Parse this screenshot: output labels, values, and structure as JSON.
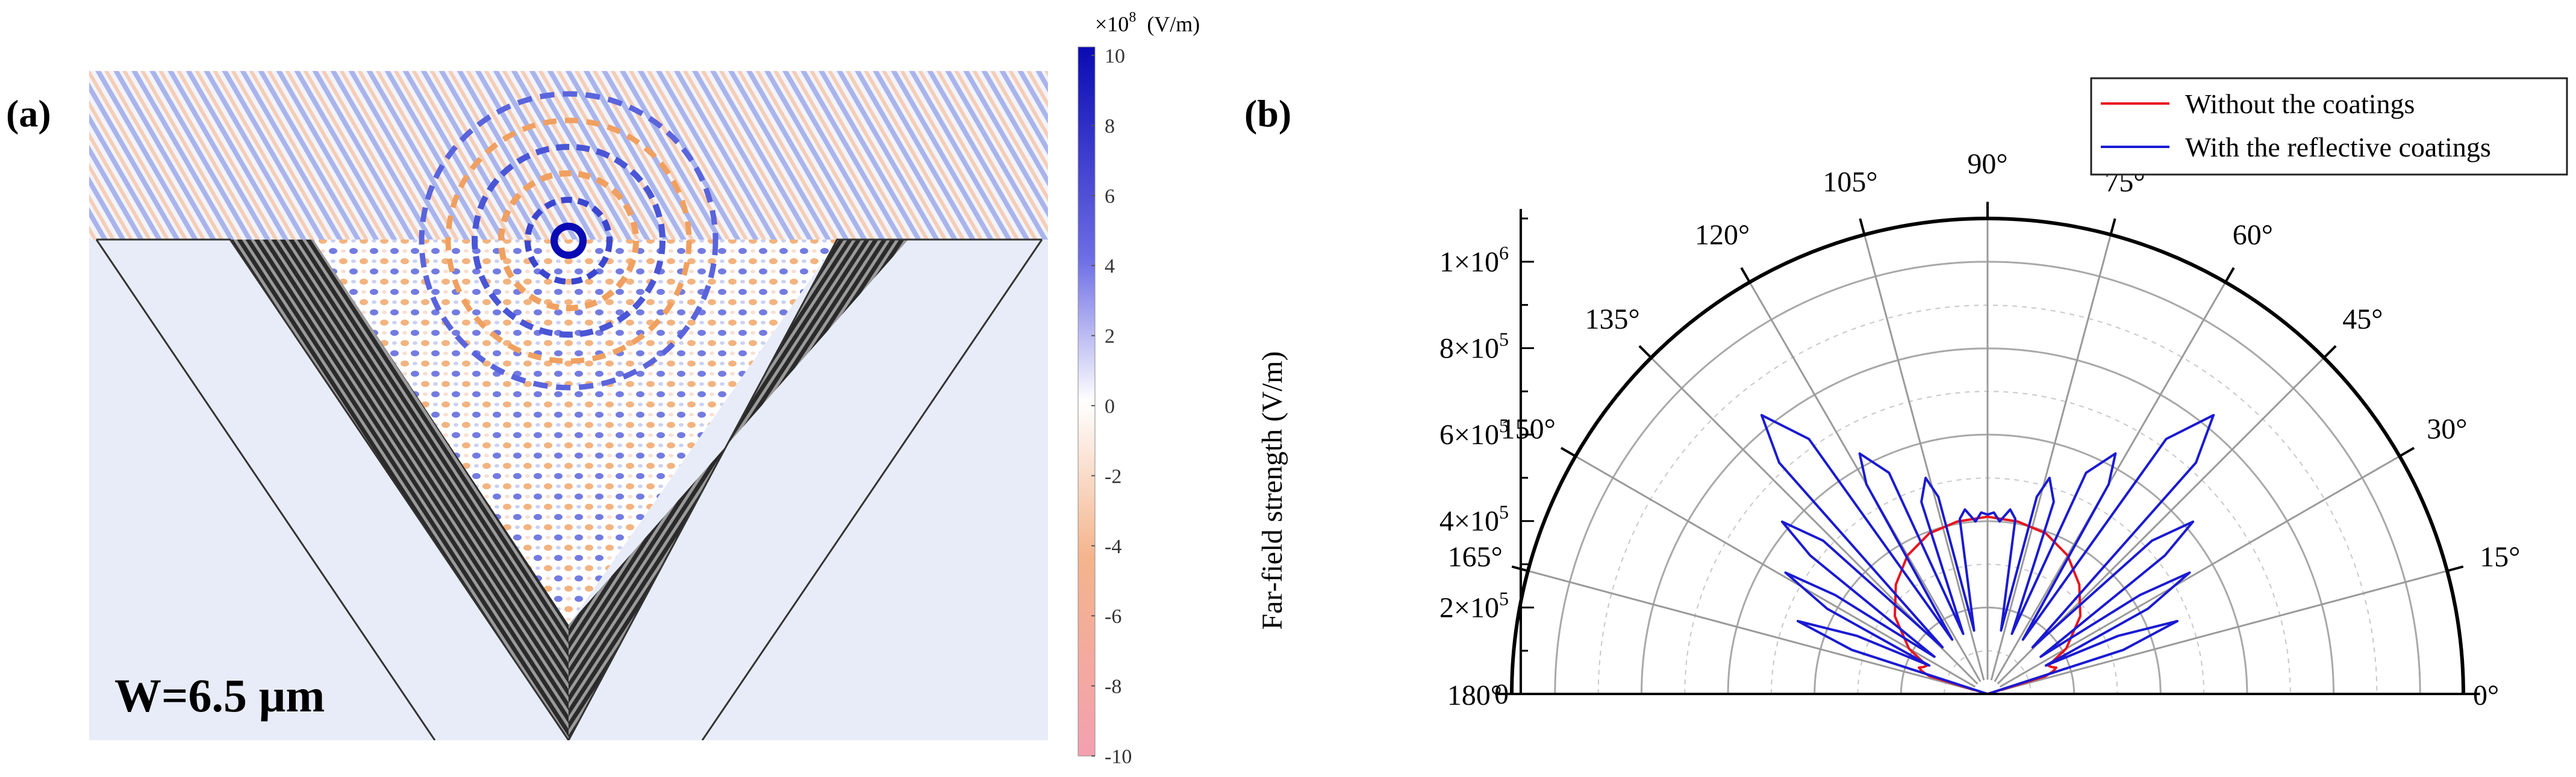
{
  "panel_a": {
    "label": "(a)",
    "annotation": "W=6.5 µm",
    "colorbar": {
      "unit_prefix": "×10",
      "unit_exponent": "8",
      "unit": "(V/m)",
      "ticks": [
        "10",
        "8",
        "6",
        "4",
        "2",
        "0",
        "-2",
        "-4",
        "-6",
        "-8",
        "-10"
      ],
      "max": 10,
      "min": -10
    },
    "colors": {
      "positive": "#1a1acc",
      "negative": "#f07a7a",
      "neutral": "#ffffff",
      "background": "#e8ecf8"
    }
  },
  "panel_b": {
    "label": "(b)"
  },
  "chart_data": {
    "type": "polar-line",
    "title": "",
    "ylabel": "Far-field strength (V/m)",
    "rlim": [
      0,
      1100000
    ],
    "radial_ticks": [
      {
        "value": 0,
        "label": "0",
        "mant": "",
        "exp": ""
      },
      {
        "value": 200000,
        "label": "2×10^5",
        "mant": "2×10",
        "exp": "5"
      },
      {
        "value": 400000,
        "label": "4×10^5",
        "mant": "4×10",
        "exp": "5"
      },
      {
        "value": 600000,
        "label": "6×10^5",
        "mant": "6×10",
        "exp": "5"
      },
      {
        "value": 800000,
        "label": "8×10^5",
        "mant": "8×10",
        "exp": "5"
      },
      {
        "value": 1000000,
        "label": "1×10^6",
        "mant": "1×10",
        "exp": "6"
      }
    ],
    "angle_ticks": [
      {
        "deg": 0,
        "label": "0°"
      },
      {
        "deg": 15,
        "label": "15°"
      },
      {
        "deg": 30,
        "label": "30°"
      },
      {
        "deg": 45,
        "label": "45°"
      },
      {
        "deg": 60,
        "label": "60°"
      },
      {
        "deg": 75,
        "label": "75°"
      },
      {
        "deg": 90,
        "label": "90°"
      },
      {
        "deg": 105,
        "label": "105°"
      },
      {
        "deg": 120,
        "label": "120°"
      },
      {
        "deg": 135,
        "label": "135°"
      },
      {
        "deg": 150,
        "label": "150°"
      },
      {
        "deg": 165,
        "label": "165°"
      },
      {
        "deg": 180,
        "label": "180°"
      }
    ],
    "legend": {
      "position": "top-right"
    },
    "series": [
      {
        "name": "Without the coatings",
        "color": "#e8141e",
        "theta": [
          0,
          15,
          17,
          19,
          21,
          23,
          25,
          30,
          40,
          50,
          60,
          70,
          80,
          90,
          100,
          110,
          120,
          130,
          140,
          150,
          155,
          157,
          159,
          161,
          163,
          165,
          180
        ],
        "r": [
          0,
          0,
          140000,
          160000,
          170000,
          160000,
          155000,
          210000,
          280000,
          330000,
          370000,
          395000,
          405000,
          410000,
          405000,
          395000,
          370000,
          330000,
          280000,
          210000,
          155000,
          160000,
          170000,
          160000,
          140000,
          0,
          0
        ]
      },
      {
        "name": "With the reflective coatings",
        "color": "#1a1ad2",
        "theta": [
          0,
          16,
          18,
          21,
          24,
          26,
          28,
          31,
          33,
          35,
          38,
          40,
          43,
          46,
          48,
          51,
          55,
          57,
          60,
          62,
          66,
          68,
          71,
          74,
          76,
          78,
          81,
          83,
          86,
          88,
          90,
          92,
          94,
          97,
          99,
          102,
          104,
          106,
          109,
          112,
          114,
          118,
          120,
          123,
          125,
          129,
          132,
          134,
          137,
          140,
          142,
          145,
          147,
          149,
          152,
          154,
          156,
          159,
          162,
          164,
          180
        ],
        "r": [
          0,
          0,
          330000,
          470000,
          330000,
          150000,
          420000,
          545000,
          420000,
          150000,
          520000,
          620000,
          520000,
          150000,
          720000,
          830000,
          720000,
          150000,
          560000,
          630000,
          560000,
          150000,
          470000,
          520000,
          470000,
          150000,
          410000,
          430000,
          400000,
          420000,
          415000,
          420000,
          400000,
          430000,
          410000,
          150000,
          470000,
          520000,
          470000,
          150000,
          560000,
          630000,
          560000,
          150000,
          720000,
          830000,
          720000,
          150000,
          520000,
          620000,
          520000,
          150000,
          420000,
          545000,
          420000,
          150000,
          330000,
          470000,
          330000,
          0,
          0
        ]
      }
    ]
  }
}
